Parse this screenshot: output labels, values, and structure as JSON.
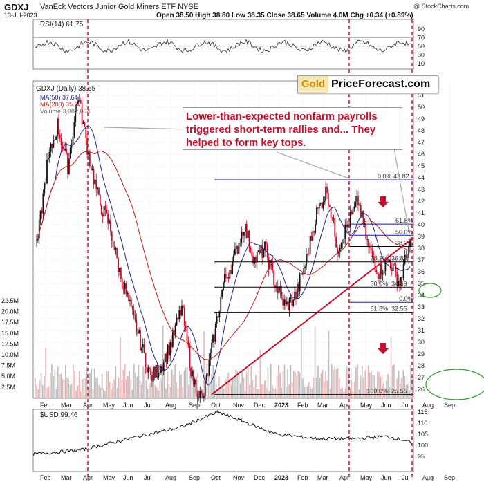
{
  "header": {
    "ticker": "GDXJ",
    "fullname": "VanEck Vectors Junior Gold Miners ETF  NYSE",
    "date": "13-Jul-2023",
    "ohlc": "Open 38.50  High 38.80  Low 38.35  Close 38.65  Volume 4.0M  Chg +0.34 (+0.89%)",
    "watermark": "@ StockCharts.com"
  },
  "legend": {
    "title": "GDXJ (Daily) 38.65",
    "ma50": "MA(50) 37.64",
    "ma200": "MA(200) 35.97",
    "volume": "Volume 3,982,064"
  },
  "rsi_label": "RSI(14) 61.75",
  "usd_label": "$USD 99.46",
  "logo": {
    "gold": "Gold",
    "rest": "PriceForecast.com"
  },
  "annotation": "Lower-than-expected nonfarm payrolls triggered short-term rallies and... They helped to form key tops.",
  "colors": {
    "candle_up": "#111111",
    "candle_down": "#c8102e",
    "ma50": "#1a237e",
    "ma200": "#b71c1c",
    "fib": "#1a1aa8",
    "trend": "#c8102e",
    "ellipse": "#2e9a2e",
    "vlines": "#c8102e"
  },
  "chart_data": [
    {
      "type": "line",
      "name": "price",
      "x_labels": [
        "Feb",
        "Mar",
        "Apr",
        "May",
        "Jun",
        "Jul",
        "Aug",
        "Sep",
        "Oct",
        "Nov",
        "Dec",
        "2023",
        "Feb",
        "Mar",
        "Apr",
        "May",
        "Jun",
        "Jul",
        "Aug",
        "Sep"
      ],
      "y_ticks": [
        26,
        27,
        28,
        29,
        30,
        31,
        32,
        33,
        34,
        35,
        36,
        37,
        38,
        39,
        40,
        41,
        42,
        43,
        44,
        45,
        46,
        47,
        48,
        49,
        50,
        51,
        52
      ],
      "volume_ticks": [
        "22.5M",
        "20.0M",
        "17.5M",
        "15.0M",
        "12.5M",
        "10.0M",
        "7.5M",
        "5.0M",
        "2.5M"
      ],
      "close_path": [
        38,
        45,
        48.5,
        45,
        51,
        46,
        42,
        40,
        36,
        33,
        30,
        27,
        28,
        30,
        33,
        27,
        25,
        30,
        35,
        37,
        40,
        37,
        38,
        35,
        33,
        34,
        37,
        41,
        43,
        38,
        40,
        42,
        38,
        36,
        37,
        35,
        38.65
      ],
      "fib_levels": [
        {
          "label": "0.0% 43.82",
          "value": 43.82
        },
        {
          "label": "61.8%",
          "value": 40.05
        },
        {
          "label": "50.0%",
          "value": 39.1
        },
        {
          "label": "38.2%",
          "value": 38.15
        },
        {
          "label": "38.2%: 36.84",
          "value": 36.84
        },
        {
          "label": "50.0%: 34.69",
          "value": 34.69
        },
        {
          "label": "0.0%",
          "value": 33.4
        },
        {
          "label": "61.8%: 32.55",
          "value": 32.55
        },
        {
          "label": "100.0%: 25.55",
          "value": 25.55
        }
      ]
    },
    {
      "type": "line",
      "name": "RSI(14)",
      "y_ticks": [
        10,
        30,
        50,
        70,
        90
      ],
      "last": 61.75
    },
    {
      "type": "line",
      "name": "$USD",
      "y_ticks": [
        95,
        100,
        105,
        110,
        115
      ],
      "last": 99.46
    }
  ]
}
